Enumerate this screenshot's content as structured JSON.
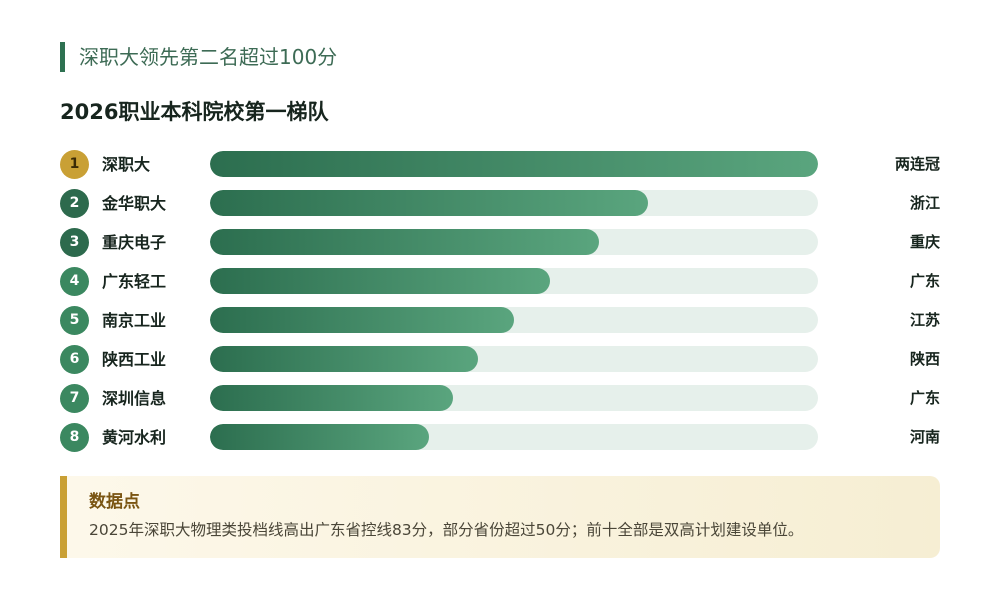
{
  "subtitle": "深职大领先第二名超过100分",
  "title": "2026职业本科院校第一梯队",
  "colors": {
    "accent": "#2e7151",
    "gold": "#c9a035",
    "bar_start": "#2c6e4f",
    "bar_end": "#5aa57e",
    "track": "#e6f0eb"
  },
  "chart_data": {
    "type": "bar",
    "orientation": "horizontal",
    "categories": [
      "深职大",
      "金华职大",
      "重庆电子",
      "广东轻工",
      "南京工业",
      "陕西工业",
      "深圳信息",
      "黄河水利"
    ],
    "ranks": [
      "1",
      "2",
      "3",
      "4",
      "5",
      "6",
      "7",
      "8"
    ],
    "labels": [
      "两连冠",
      "浙江",
      "重庆",
      "广东",
      "江苏",
      "陕西",
      "广东",
      "河南"
    ],
    "values": [
      100,
      72,
      64,
      56,
      50,
      44,
      40,
      36
    ],
    "xlim": [
      0,
      100
    ],
    "grid": false,
    "legend": "none"
  },
  "note": {
    "title": "数据点",
    "body": "2025年深职大物理类投档线高出广东省控线83分，部分省份超过50分；前十全部是双高计划建设单位。"
  }
}
